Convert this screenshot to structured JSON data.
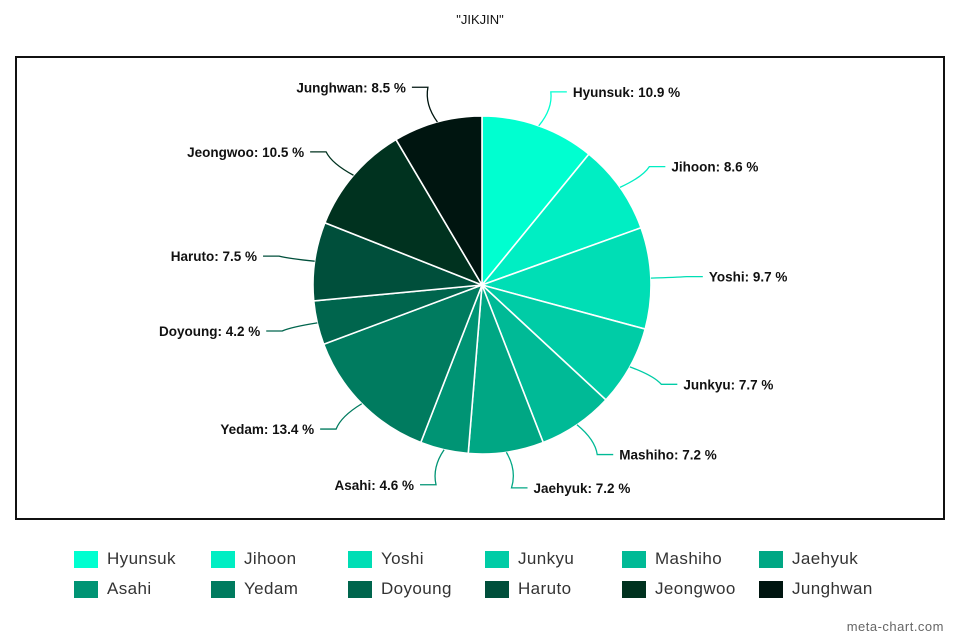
{
  "chart_data": {
    "type": "pie",
    "title": "\"JIKJIN\"",
    "unit": "%",
    "slices": [
      {
        "name": "Hyunsuk",
        "value": 10.9,
        "label": "Hyunsuk: 10.9 %",
        "color": "#00ffd0"
      },
      {
        "name": "Jihoon",
        "value": 8.6,
        "label": "Jihoon: 8.6 %",
        "color": "#00eec3"
      },
      {
        "name": "Yoshi",
        "value": 9.7,
        "label": "Yoshi: 9.7 %",
        "color": "#00deb5"
      },
      {
        "name": "Junkyu",
        "value": 7.7,
        "label": "Junkyu: 7.7 %",
        "color": "#00cca6"
      },
      {
        "name": "Mashiho",
        "value": 7.2,
        "label": "Mashiho: 7.2 %",
        "color": "#00ba96"
      },
      {
        "name": "Jaehyuk",
        "value": 7.2,
        "label": "Jaehyuk: 7.2 %",
        "color": "#00a784"
      },
      {
        "name": "Asahi",
        "value": 4.6,
        "label": "Asahi: 4.6 %",
        "color": "#009474"
      },
      {
        "name": "Yedam",
        "value": 13.4,
        "label": "Yedam: 13.4 %",
        "color": "#007b5f"
      },
      {
        "name": "Doyoung",
        "value": 4.2,
        "label": "Doyoung: 4.2 %",
        "color": "#00654d"
      },
      {
        "name": "Haruto",
        "value": 7.5,
        "label": "Haruto: 7.5 %",
        "color": "#004f3b"
      },
      {
        "name": "Jeongwoo",
        "value": 10.5,
        "label": "Jeongwoo: 10.5 %",
        "color": "#00321f"
      },
      {
        "name": "Junghwan",
        "value": 8.5,
        "label": "Junghwan: 8.5 %",
        "color": "#001510"
      }
    ],
    "legend_position": "bottom"
  },
  "watermark": "meta-chart.com"
}
